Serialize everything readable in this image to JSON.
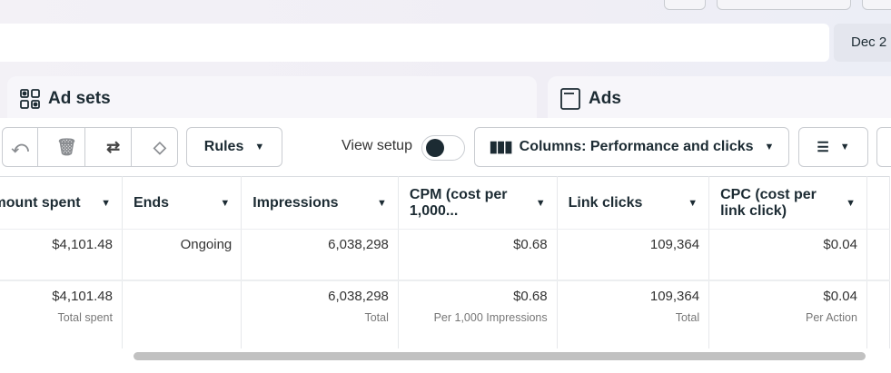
{
  "header": {
    "date_label": "Dec 2"
  },
  "tabs": [
    {
      "label": "Ad sets",
      "icon": "grid-icon"
    },
    {
      "label": "Ads",
      "icon": "window-icon"
    }
  ],
  "toolbar": {
    "rules_label": "Rules",
    "view_setup_label": "View setup",
    "view_setup_on": false,
    "columns_label": "Columns: Performance and clicks"
  },
  "table": {
    "columns": [
      "Amount spent",
      "Ends",
      "Impressions",
      "CPM (cost per 1,000...",
      "Link clicks",
      "CPC (cost per link click)"
    ],
    "row": [
      "$4,101.48",
      "Ongoing",
      "6,038,298",
      "$0.68",
      "109,364",
      "$0.04"
    ],
    "totals": [
      {
        "value": "$4,101.48",
        "label": "Total spent"
      },
      {
        "value": "",
        "label": ""
      },
      {
        "value": "6,038,298",
        "label": "Total"
      },
      {
        "value": "$0.68",
        "label": "Per 1,000 Impressions"
      },
      {
        "value": "109,364",
        "label": "Total"
      },
      {
        "value": "$0.04",
        "label": "Per Action"
      }
    ]
  }
}
